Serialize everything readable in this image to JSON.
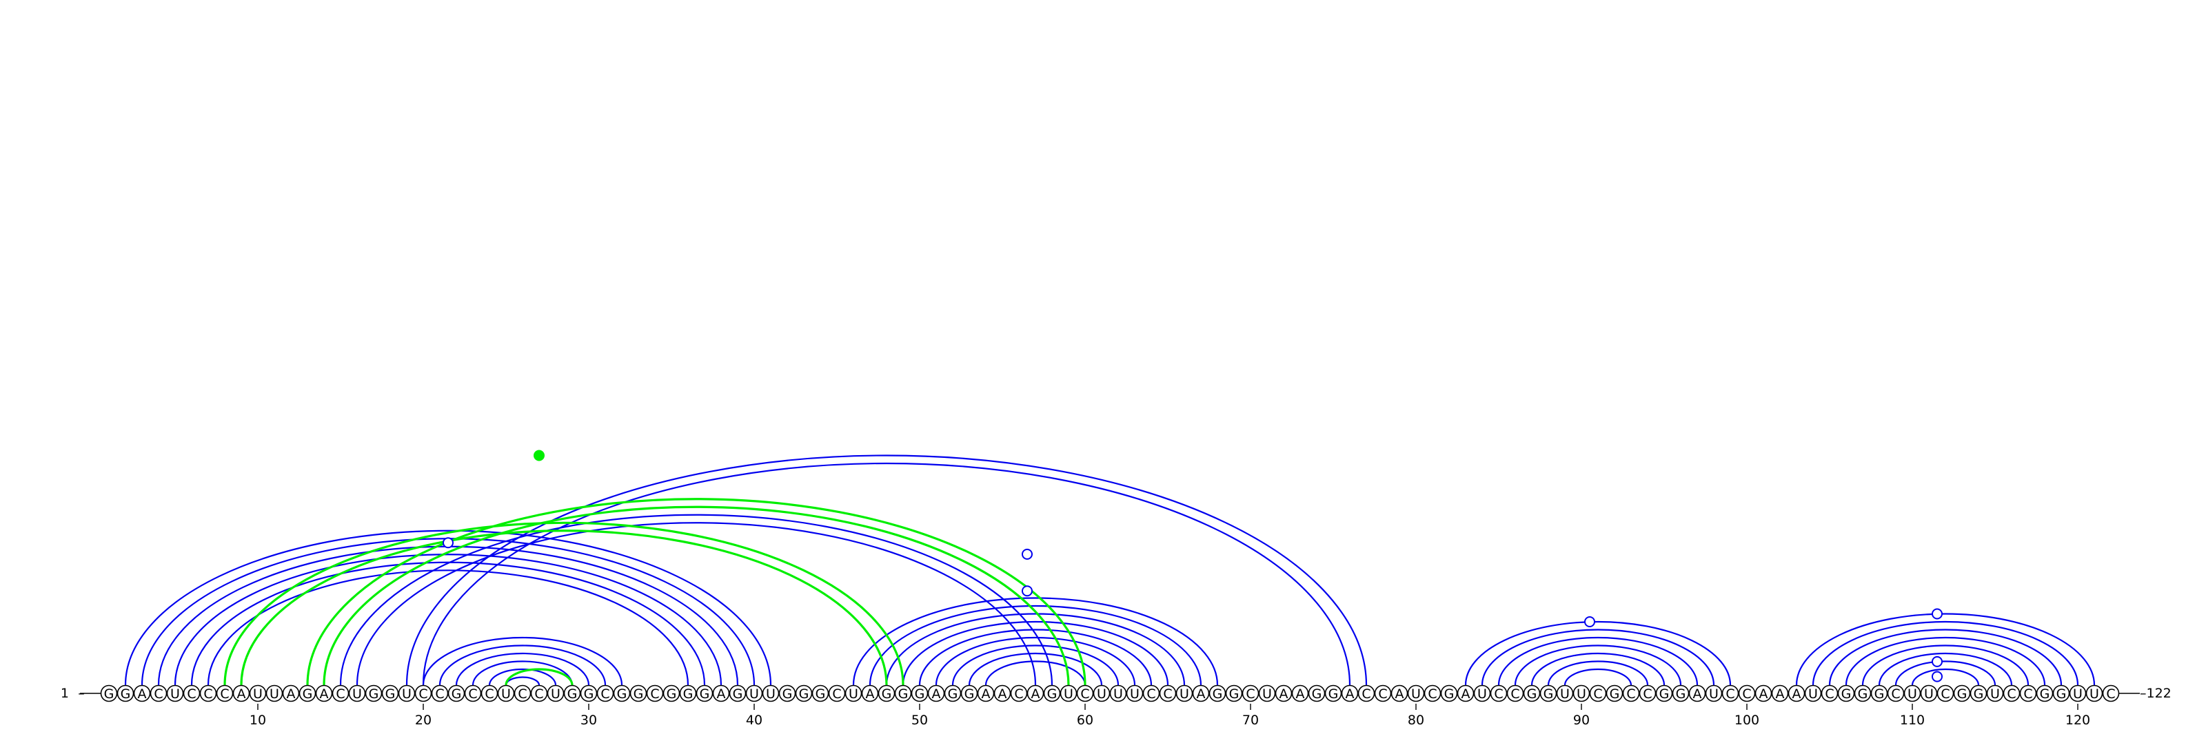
{
  "sequence": "GGACUCCCAUUAGACUGGUCCGCCUCCUGGCGGCGGGAGUUGGGCUAGGGAGGAACAGUCUUUCCUAGGCUAAGGACCAUCGAUCCGGUUCGCCGGAUCCAAAUCGGGCUUCGGUCCGGUUC",
  "start_label": "1",
  "end_label": "122",
  "ticks": [
    10,
    20,
    30,
    40,
    50,
    60,
    70,
    80,
    90,
    100,
    110,
    120
  ],
  "colors": {
    "blue": "#0000ee",
    "green": "#00ee00"
  },
  "arc_groups": [
    {
      "color": "blue",
      "i_start": 2,
      "j_start": 41,
      "count": 6
    },
    {
      "color": "blue",
      "i_start": 20,
      "j_start": 32,
      "count": 6
    },
    {
      "color": "blue",
      "i_start": 15,
      "j_start": 58,
      "count": 2
    },
    {
      "color": "blue",
      "i_start": 19,
      "j_start": 77,
      "count": 2
    },
    {
      "color": "blue",
      "i_start": 46,
      "j_start": 68,
      "count": 9
    },
    {
      "color": "blue",
      "i_start": 83,
      "j_start": 99,
      "count": 7
    },
    {
      "color": "blue",
      "i_start": 103,
      "j_start": 121,
      "count": 8
    },
    {
      "color": "green",
      "i_start": 8,
      "j_start": 49,
      "count": 2
    },
    {
      "color": "green",
      "i_start": 13,
      "j_start": 60,
      "count": 2
    },
    {
      "color": "green",
      "i_start": 25,
      "j_start": 29,
      "count": 1
    }
  ],
  "markers": [
    {
      "type": "open",
      "pos": 21.5,
      "level": 0.62
    },
    {
      "type": "open",
      "pos": 56.5,
      "level": 0.41
    },
    {
      "type": "open",
      "pos": 56.5,
      "level": 0.57
    },
    {
      "type": "filled",
      "pos": 27,
      "level": 1.0
    },
    {
      "type": "open",
      "pos": 90.5,
      "level": 1.0
    },
    {
      "type": "open",
      "pos": 111.5,
      "level": 1.0
    },
    {
      "type": "open",
      "pos": 111.5,
      "level": 0.33
    },
    {
      "type": "open",
      "pos": 111.5,
      "level": 0.12
    }
  ]
}
